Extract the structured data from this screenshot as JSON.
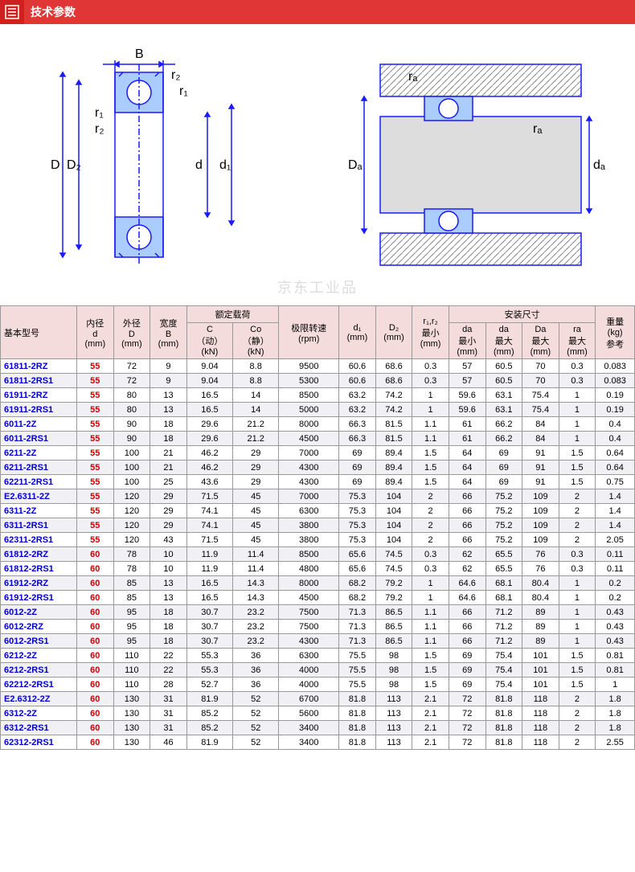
{
  "header": {
    "title": "技术参数"
  },
  "watermark": "京东工业品",
  "tableHeaders": {
    "group1": [
      "基本型号",
      "内径\nd\n(mm)",
      "外径\nD\n(mm)",
      "宽度\nB\n(mm)"
    ],
    "load": "额定载荷",
    "loadSub": [
      "C\n（动）\n(kN)",
      "Co\n（静）\n(kN)"
    ],
    "speed": "极限转速\n(rpm)",
    "d1": "d₁\n(mm)",
    "D2": "D₂\n(mm)",
    "r": "r₁,r₂\n最小\n(mm)",
    "install": "安装尺寸",
    "installSub": [
      "da\n最小\n(mm)",
      "da\n最大\n(mm)",
      "Da\n最大\n(mm)",
      "ra\n最大\n(mm)"
    ],
    "weight": "重量\n(kg)\n参考"
  },
  "rows": [
    [
      "61811-2RZ",
      "55",
      "72",
      "9",
      "9.04",
      "8.8",
      "9500",
      "60.6",
      "68.6",
      "0.3",
      "57",
      "60.5",
      "70",
      "0.3",
      "0.083"
    ],
    [
      "61811-2RS1",
      "55",
      "72",
      "9",
      "9.04",
      "8.8",
      "5300",
      "60.6",
      "68.6",
      "0.3",
      "57",
      "60.5",
      "70",
      "0.3",
      "0.083"
    ],
    [
      "61911-2RZ",
      "55",
      "80",
      "13",
      "16.5",
      "14",
      "8500",
      "63.2",
      "74.2",
      "1",
      "59.6",
      "63.1",
      "75.4",
      "1",
      "0.19"
    ],
    [
      "61911-2RS1",
      "55",
      "80",
      "13",
      "16.5",
      "14",
      "5000",
      "63.2",
      "74.2",
      "1",
      "59.6",
      "63.1",
      "75.4",
      "1",
      "0.19"
    ],
    [
      "6011-2Z",
      "55",
      "90",
      "18",
      "29.6",
      "21.2",
      "8000",
      "66.3",
      "81.5",
      "1.1",
      "61",
      "66.2",
      "84",
      "1",
      "0.4"
    ],
    [
      "6011-2RS1",
      "55",
      "90",
      "18",
      "29.6",
      "21.2",
      "4500",
      "66.3",
      "81.5",
      "1.1",
      "61",
      "66.2",
      "84",
      "1",
      "0.4"
    ],
    [
      "6211-2Z",
      "55",
      "100",
      "21",
      "46.2",
      "29",
      "7000",
      "69",
      "89.4",
      "1.5",
      "64",
      "69",
      "91",
      "1.5",
      "0.64"
    ],
    [
      "6211-2RS1",
      "55",
      "100",
      "21",
      "46.2",
      "29",
      "4300",
      "69",
      "89.4",
      "1.5",
      "64",
      "69",
      "91",
      "1.5",
      "0.64"
    ],
    [
      "62211-2RS1",
      "55",
      "100",
      "25",
      "43.6",
      "29",
      "4300",
      "69",
      "89.4",
      "1.5",
      "64",
      "69",
      "91",
      "1.5",
      "0.75"
    ],
    [
      "E2.6311-2Z",
      "55",
      "120",
      "29",
      "71.5",
      "45",
      "7000",
      "75.3",
      "104",
      "2",
      "66",
      "75.2",
      "109",
      "2",
      "1.4"
    ],
    [
      "6311-2Z",
      "55",
      "120",
      "29",
      "74.1",
      "45",
      "6300",
      "75.3",
      "104",
      "2",
      "66",
      "75.2",
      "109",
      "2",
      "1.4"
    ],
    [
      "6311-2RS1",
      "55",
      "120",
      "29",
      "74.1",
      "45",
      "3800",
      "75.3",
      "104",
      "2",
      "66",
      "75.2",
      "109",
      "2",
      "1.4"
    ],
    [
      "62311-2RS1",
      "55",
      "120",
      "43",
      "71.5",
      "45",
      "3800",
      "75.3",
      "104",
      "2",
      "66",
      "75.2",
      "109",
      "2",
      "2.05"
    ],
    [
      "61812-2RZ",
      "60",
      "78",
      "10",
      "11.9",
      "11.4",
      "8500",
      "65.6",
      "74.5",
      "0.3",
      "62",
      "65.5",
      "76",
      "0.3",
      "0.11"
    ],
    [
      "61812-2RS1",
      "60",
      "78",
      "10",
      "11.9",
      "11.4",
      "4800",
      "65.6",
      "74.5",
      "0.3",
      "62",
      "65.5",
      "76",
      "0.3",
      "0.11"
    ],
    [
      "61912-2RZ",
      "60",
      "85",
      "13",
      "16.5",
      "14.3",
      "8000",
      "68.2",
      "79.2",
      "1",
      "64.6",
      "68.1",
      "80.4",
      "1",
      "0.2"
    ],
    [
      "61912-2RS1",
      "60",
      "85",
      "13",
      "16.5",
      "14.3",
      "4500",
      "68.2",
      "79.2",
      "1",
      "64.6",
      "68.1",
      "80.4",
      "1",
      "0.2"
    ],
    [
      "6012-2Z",
      "60",
      "95",
      "18",
      "30.7",
      "23.2",
      "7500",
      "71.3",
      "86.5",
      "1.1",
      "66",
      "71.2",
      "89",
      "1",
      "0.43"
    ],
    [
      "6012-2RZ",
      "60",
      "95",
      "18",
      "30.7",
      "23.2",
      "7500",
      "71.3",
      "86.5",
      "1.1",
      "66",
      "71.2",
      "89",
      "1",
      "0.43"
    ],
    [
      "6012-2RS1",
      "60",
      "95",
      "18",
      "30.7",
      "23.2",
      "4300",
      "71.3",
      "86.5",
      "1.1",
      "66",
      "71.2",
      "89",
      "1",
      "0.43"
    ],
    [
      "6212-2Z",
      "60",
      "110",
      "22",
      "55.3",
      "36",
      "6300",
      "75.5",
      "98",
      "1.5",
      "69",
      "75.4",
      "101",
      "1.5",
      "0.81"
    ],
    [
      "6212-2RS1",
      "60",
      "110",
      "22",
      "55.3",
      "36",
      "4000",
      "75.5",
      "98",
      "1.5",
      "69",
      "75.4",
      "101",
      "1.5",
      "0.81"
    ],
    [
      "62212-2RS1",
      "60",
      "110",
      "28",
      "52.7",
      "36",
      "4000",
      "75.5",
      "98",
      "1.5",
      "69",
      "75.4",
      "101",
      "1.5",
      "1"
    ],
    [
      "E2.6312-2Z",
      "60",
      "130",
      "31",
      "81.9",
      "52",
      "6700",
      "81.8",
      "113",
      "2.1",
      "72",
      "81.8",
      "118",
      "2",
      "1.8"
    ],
    [
      "6312-2Z",
      "60",
      "130",
      "31",
      "85.2",
      "52",
      "5600",
      "81.8",
      "113",
      "2.1",
      "72",
      "81.8",
      "118",
      "2",
      "1.8"
    ],
    [
      "6312-2RS1",
      "60",
      "130",
      "31",
      "85.2",
      "52",
      "3400",
      "81.8",
      "113",
      "2.1",
      "72",
      "81.8",
      "118",
      "2",
      "1.8"
    ],
    [
      "62312-2RS1",
      "60",
      "130",
      "46",
      "81.9",
      "52",
      "3400",
      "81.8",
      "113",
      "2.1",
      "72",
      "81.8",
      "118",
      "2",
      "2.55"
    ]
  ],
  "diagram": {
    "colors": {
      "stroke": "#1a1aff",
      "fill": "#aaccff",
      "hatch": "#888",
      "dimLine": "#1a1aff"
    },
    "labels1": {
      "B": "B",
      "r1": "r₁",
      "r2": "r₂",
      "D": "D",
      "D2": "D₂",
      "d": "d",
      "d1": "d₁"
    },
    "labels2": {
      "ra": "rₐ",
      "Da": "Dₐ",
      "da": "dₐ"
    }
  }
}
